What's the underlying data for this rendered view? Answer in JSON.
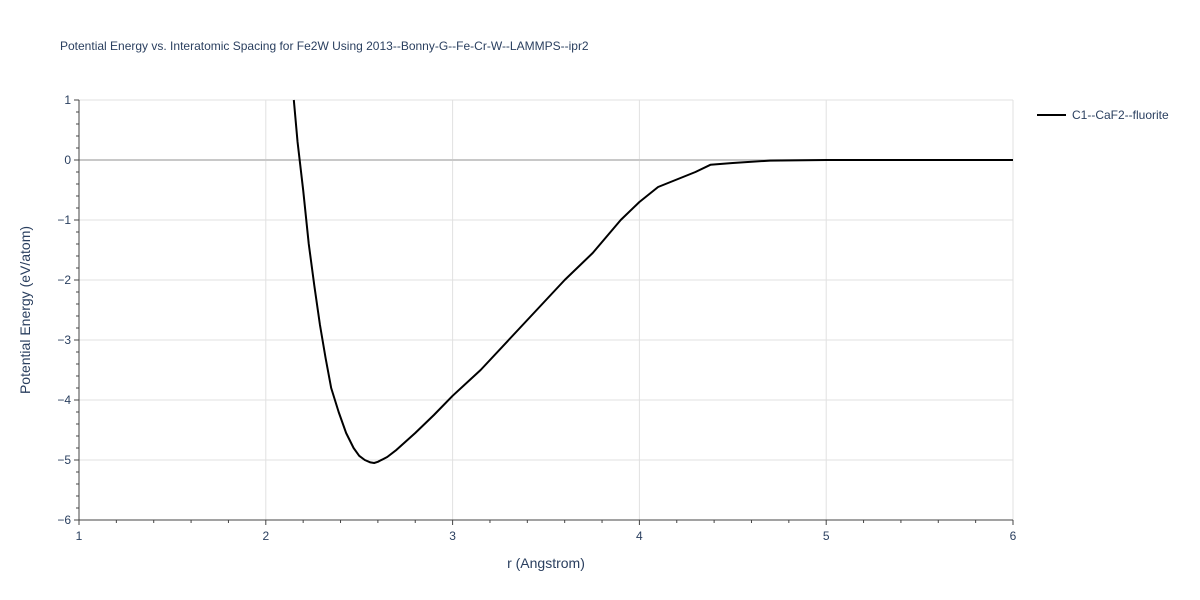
{
  "chart_data": {
    "type": "line",
    "title": "Potential Energy vs. Interatomic Spacing for Fe2W Using 2013--Bonny-G--Fe-Cr-W--LAMMPS--ipr2",
    "xlabel": "r (Angstrom)",
    "ylabel": "Potential Energy (eV/atom)",
    "xlim": [
      1,
      6
    ],
    "ylim": [
      -6,
      1
    ],
    "xticks": [
      1,
      2,
      3,
      4,
      5,
      6
    ],
    "yticks": [
      1,
      0,
      -1,
      -2,
      -3,
      -4,
      -5,
      -6
    ],
    "xtick_labels": [
      "1",
      "2",
      "3",
      "4",
      "5",
      "6"
    ],
    "ytick_labels": [
      "1",
      "0",
      "−1",
      "−2",
      "−3",
      "−4",
      "−5",
      "−6"
    ],
    "grid": true,
    "legend_position": "top-right",
    "series": [
      {
        "name": "C1--CaF2--fluorite",
        "color": "#000000",
        "x": [
          2.15,
          2.17,
          2.2,
          2.23,
          2.26,
          2.29,
          2.32,
          2.35,
          2.39,
          2.43,
          2.47,
          2.5,
          2.53,
          2.56,
          2.58,
          2.6,
          2.65,
          2.7,
          2.8,
          2.9,
          3.0,
          3.15,
          3.3,
          3.45,
          3.6,
          3.75,
          3.9,
          4.0,
          4.1,
          4.3,
          4.38,
          4.5,
          4.7,
          5.0,
          5.5,
          6.0
        ],
        "y": [
          1.0,
          0.3,
          -0.5,
          -1.4,
          -2.1,
          -2.75,
          -3.3,
          -3.8,
          -4.2,
          -4.55,
          -4.8,
          -4.93,
          -5.0,
          -5.04,
          -5.05,
          -5.03,
          -4.95,
          -4.83,
          -4.55,
          -4.25,
          -3.93,
          -3.5,
          -3.0,
          -2.5,
          -2.0,
          -1.55,
          -1.0,
          -0.7,
          -0.45,
          -0.2,
          -0.08,
          -0.05,
          -0.01,
          0.0,
          0.0,
          0.0
        ]
      }
    ]
  }
}
